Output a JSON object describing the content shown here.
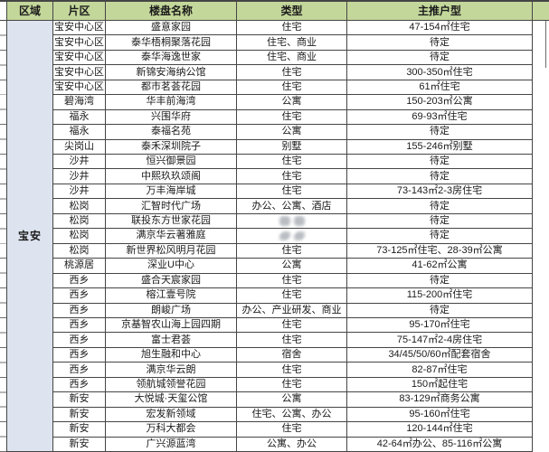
{
  "colors": {
    "header_bg": "#c4d79b",
    "region_bg": "#dde4ef",
    "border": "#454545",
    "text": "#1b1b1b",
    "smudge": "#a3a9b0"
  },
  "sheet": {
    "headers": {
      "region": "区域",
      "district": "片区",
      "name": "楼盘名称",
      "type": "类型",
      "units": "主推户型"
    },
    "region_group": {
      "label": "宝安",
      "rowspan": 29
    },
    "rows": [
      {
        "district": "宝安中心区",
        "name": "盛意家园",
        "type": "住宅",
        "units": "47-154㎡住宅"
      },
      {
        "district": "宝安中心区",
        "name": "泰华梧桐聚落花园",
        "type": "住宅、商业",
        "units": "待定"
      },
      {
        "district": "宝安中心区",
        "name": "泰华海逸世家",
        "type": "住宅、商业",
        "units": "待定"
      },
      {
        "district": "宝安中心区",
        "name": "新锦安海纳公馆",
        "type": "住宅",
        "units": "300-350㎡住宅"
      },
      {
        "district": "宝安中心区",
        "name": "都市茗荟花园",
        "type": "住宅",
        "units": "61㎡住宅"
      },
      {
        "district": "碧海湾",
        "name": "华丰前海湾",
        "type": "公寓",
        "units": "150-203㎡公寓"
      },
      {
        "district": "福永",
        "name": "兴围华府",
        "type": "住宅",
        "units": "69-93㎡住宅"
      },
      {
        "district": "福永",
        "name": "泰福名苑",
        "type": "公寓",
        "units": "待定"
      },
      {
        "district": "尖岗山",
        "name": "泰禾深圳院子",
        "type": "别墅",
        "units": "155-246㎡别墅"
      },
      {
        "district": "沙井",
        "name": "恒兴御景园",
        "type": "住宅",
        "units": "待定"
      },
      {
        "district": "沙井",
        "name": "中熙玖玖颂阁",
        "type": "住宅",
        "units": "待定"
      },
      {
        "district": "沙井",
        "name": "万丰海岸城",
        "type": "住宅",
        "units": "73-143㎡2-3房住宅"
      },
      {
        "district": "松岗",
        "name": "汇智时代广场",
        "type": "办公、公寓、酒店",
        "units": "待定"
      },
      {
        "district": "松岗",
        "name": "联投东方世家花园",
        "type": "",
        "type_smudged": true,
        "smudge_variant": "round",
        "units": "待定"
      },
      {
        "district": "松岗",
        "name": "满京华云著雅庭",
        "type": "",
        "type_smudged": true,
        "smudge_variant": "slash",
        "units": "待定"
      },
      {
        "district": "松岗",
        "name": "新世界松风明月花园",
        "type": "住宅",
        "units": "73-125㎡住宅、28-39㎡公寓"
      },
      {
        "district": "桃源居",
        "name": "深业U中心",
        "type": "公寓",
        "units": "41-62㎡公寓"
      },
      {
        "district": "西乡",
        "name": "盛合天宸家园",
        "type": "住宅",
        "units": "待定"
      },
      {
        "district": "西乡",
        "name": "榕江壹号院",
        "type": "住宅",
        "units": "115-200㎡住宅"
      },
      {
        "district": "西乡",
        "name": "朗峻广场",
        "type": "办公、产业研发、商业",
        "units": "待定"
      },
      {
        "district": "西乡",
        "name": "京基智农山海上园四期",
        "type": "住宅",
        "units": "95-170㎡住宅"
      },
      {
        "district": "西乡",
        "name": "富士君荟",
        "type": "住宅",
        "units": "75-147㎡2-4房住宅"
      },
      {
        "district": "西乡",
        "name": "旭生融和中心",
        "type": "宿舍",
        "units": "34/45/50/60㎡配套宿舍"
      },
      {
        "district": "西乡",
        "name": "满京华云朗",
        "type": "住宅",
        "units": "82-87㎡住宅"
      },
      {
        "district": "西乡",
        "name": "领航城领誉花园",
        "type": "住宅",
        "units": "150㎡起住宅"
      },
      {
        "district": "新安",
        "name": "大悦城·天玺公馆",
        "type": "公寓",
        "units": "83-129㎡商务公寓"
      },
      {
        "district": "新安",
        "name": "宏发新领域",
        "type": "住宅、公寓、办公",
        "units": "95-160㎡住宅"
      },
      {
        "district": "新安",
        "name": "万科大都会",
        "type": "住宅",
        "units": "120-144㎡住宅"
      },
      {
        "district": "新安",
        "name": "广兴源蓝湾",
        "type": "公寓、办公",
        "units": "42-64㎡办公、85-116㎡公寓"
      }
    ]
  }
}
